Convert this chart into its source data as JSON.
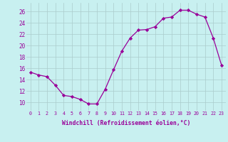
{
  "x": [
    0,
    1,
    2,
    3,
    4,
    5,
    6,
    7,
    8,
    9,
    10,
    11,
    12,
    13,
    14,
    15,
    16,
    17,
    18,
    19,
    20,
    21,
    22,
    23
  ],
  "y": [
    15.3,
    14.8,
    14.5,
    13.0,
    11.2,
    11.0,
    10.5,
    9.7,
    9.7,
    12.3,
    15.7,
    19.0,
    21.3,
    22.7,
    22.8,
    23.3,
    24.8,
    25.0,
    26.2,
    26.2,
    25.5,
    25.0,
    21.3,
    16.5
  ],
  "xlabel": "Windchill (Refroidissement éolien,°C)",
  "xlim": [
    -0.5,
    23.5
  ],
  "ylim": [
    8.5,
    27.5
  ],
  "yticks": [
    10,
    12,
    14,
    16,
    18,
    20,
    22,
    24,
    26
  ],
  "xticks": [
    0,
    1,
    2,
    3,
    4,
    5,
    6,
    7,
    8,
    9,
    10,
    11,
    12,
    13,
    14,
    15,
    16,
    17,
    18,
    19,
    20,
    21,
    22,
    23
  ],
  "line_color": "#990099",
  "marker": "D",
  "marker_size": 2.2,
  "bg_color": "#c8f0f0",
  "grid_color": "#aacccc",
  "font_color": "#990099",
  "font_family": "monospace"
}
